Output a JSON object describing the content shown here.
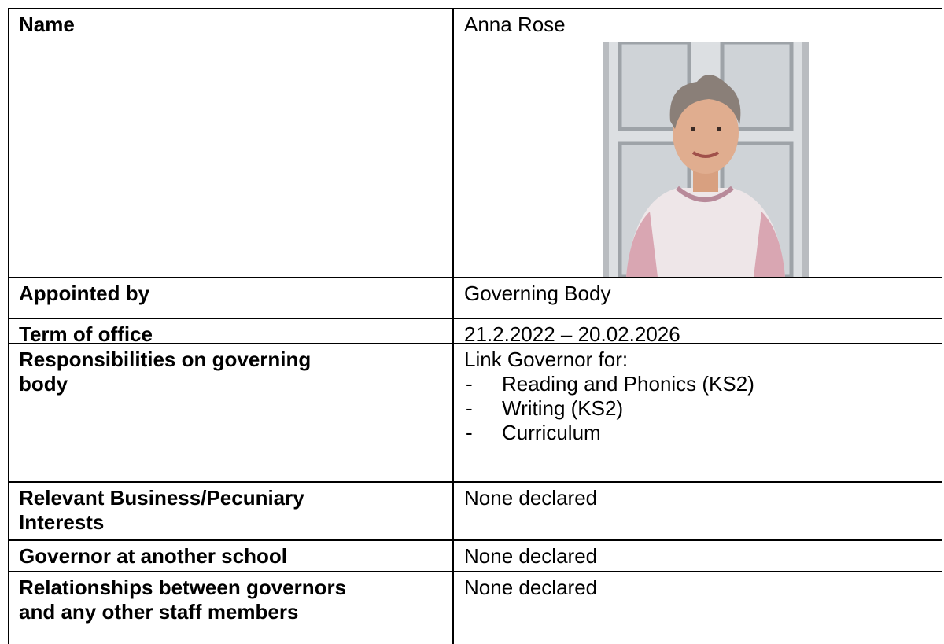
{
  "table": {
    "rows": [
      {
        "label": [
          "Name"
        ],
        "value": [
          "Anna Rose"
        ]
      },
      {
        "label": [
          "Appointed by"
        ],
        "value": [
          "Governing Body"
        ]
      },
      {
        "label": [
          "Term of office"
        ],
        "value": [
          "21.2.2022 – 20.02.2026"
        ]
      },
      {
        "label": [
          "Responsibilities on governing",
          "body"
        ],
        "value": [
          "Link Governor for:"
        ],
        "items": [
          "Reading and Phonics (KS2)",
          "Writing (KS2)",
          "Curriculum"
        ]
      },
      {
        "label": [
          "Relevant Business/Pecuniary",
          "Interests"
        ],
        "value": [
          "None declared"
        ]
      },
      {
        "label": [
          "Governor at another school"
        ],
        "value": [
          "None declared"
        ]
      },
      {
        "label": [
          "Relationships between governors",
          "and any other staff members"
        ],
        "value": [
          "None declared"
        ]
      }
    ]
  }
}
